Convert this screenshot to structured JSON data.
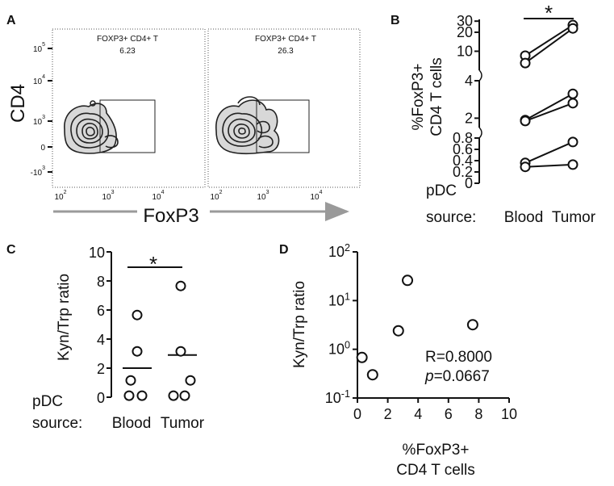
{
  "panels": {
    "A": {
      "letter": "A",
      "y_label": "CD4",
      "x_label": "FoxP3",
      "y_ticks": [
        "10^5",
        "10^4",
        "10^3",
        "0",
        "-10^3"
      ],
      "x_ticks": [
        "10^2",
        "10^3",
        "10^4"
      ],
      "plots": [
        {
          "gate_label": "FOXP3+ CD4+ T",
          "gate_value": "6.23"
        },
        {
          "gate_label": "FOXP3+ CD4+ T",
          "gate_value": "26.3"
        }
      ]
    },
    "B": {
      "letter": "B",
      "ylabel_line1": "%FoxP3+",
      "ylabel_line2": "CD4 T cells",
      "row_label": "pDC",
      "source_label": "source:",
      "categories": [
        "Blood",
        "Tumor"
      ],
      "significance": "*"
    },
    "C": {
      "letter": "C",
      "ylabel": "Kyn/Trp ratio",
      "row_label": "pDC",
      "source_label": "source:",
      "categories": [
        "Blood",
        "Tumor"
      ],
      "significance": "*"
    },
    "D": {
      "letter": "D",
      "ylabel": "Kyn/Trp ratio",
      "xlabel_line1": "%FoxP3+",
      "xlabel_line2": "CD4 T cells",
      "stat_r": "R=0.8000",
      "stat_p_label": "p",
      "stat_p_value": "=0.0667"
    }
  },
  "chart_data": [
    {
      "panel": "A",
      "type": "scatter",
      "title": "",
      "xlabel": "FoxP3",
      "ylabel": "CD4",
      "x_scale": "biexponential",
      "y_scale": "biexponential",
      "gates": [
        {
          "label": "FOXP3+ CD4+ T",
          "percent": 6.23
        },
        {
          "label": "FOXP3+ CD4+ T",
          "percent": 26.3
        }
      ]
    },
    {
      "panel": "B",
      "type": "line",
      "ylabel": "%FoxP3+ CD4 T cells",
      "categories": [
        "Blood",
        "Tumor"
      ],
      "y_axis_segments": [
        [
          0,
          0.8
        ],
        [
          1.5,
          4
        ],
        [
          5,
          32
        ]
      ],
      "y_ticks": [
        0,
        0.2,
        0.4,
        0.6,
        0.8,
        2,
        4,
        10,
        20,
        30
      ],
      "series": [
        {
          "values": [
            8.5,
            26
          ]
        },
        {
          "values": [
            6.5,
            23
          ]
        },
        {
          "values": [
            1.9,
            3.3
          ]
        },
        {
          "values": [
            1.85,
            2.8
          ]
        },
        {
          "values": [
            0.36,
            0.73
          ]
        },
        {
          "values": [
            0.29,
            0.33
          ]
        }
      ],
      "significance": "*"
    },
    {
      "panel": "C",
      "type": "scatter",
      "ylabel": "Kyn/Trp ratio",
      "categories": [
        "Blood",
        "Tumor"
      ],
      "ylim": [
        0,
        10
      ],
      "y_ticks": [
        0,
        2,
        4,
        6,
        8,
        10
      ],
      "points": {
        "Blood": [
          5.6,
          3.1,
          1.1,
          0.05,
          0.05
        ],
        "Tumor": [
          7.6,
          3.1,
          1.1,
          0.05,
          0.05
        ]
      },
      "medians": {
        "Blood": 2.0,
        "Tumor": 2.9
      },
      "significance": "*"
    },
    {
      "panel": "D",
      "type": "scatter",
      "xlabel": "%FoxP3+ CD4 T cells",
      "ylabel": "Kyn/Trp ratio",
      "xlim": [
        0,
        10
      ],
      "x_ticks": [
        0,
        2,
        4,
        6,
        8,
        10
      ],
      "y_scale": "log",
      "ylim": [
        0.1,
        100
      ],
      "y_ticks": [
        "10^-1",
        "10^0",
        "10^1",
        "10^2"
      ],
      "points": [
        {
          "x": 0.3,
          "y": 0.68
        },
        {
          "x": 1.0,
          "y": 0.3
        },
        {
          "x": 2.7,
          "y": 2.4
        },
        {
          "x": 3.3,
          "y": 26
        },
        {
          "x": 7.6,
          "y": 3.2
        }
      ],
      "annotation": [
        "R=0.8000",
        "p=0.0667"
      ]
    }
  ]
}
